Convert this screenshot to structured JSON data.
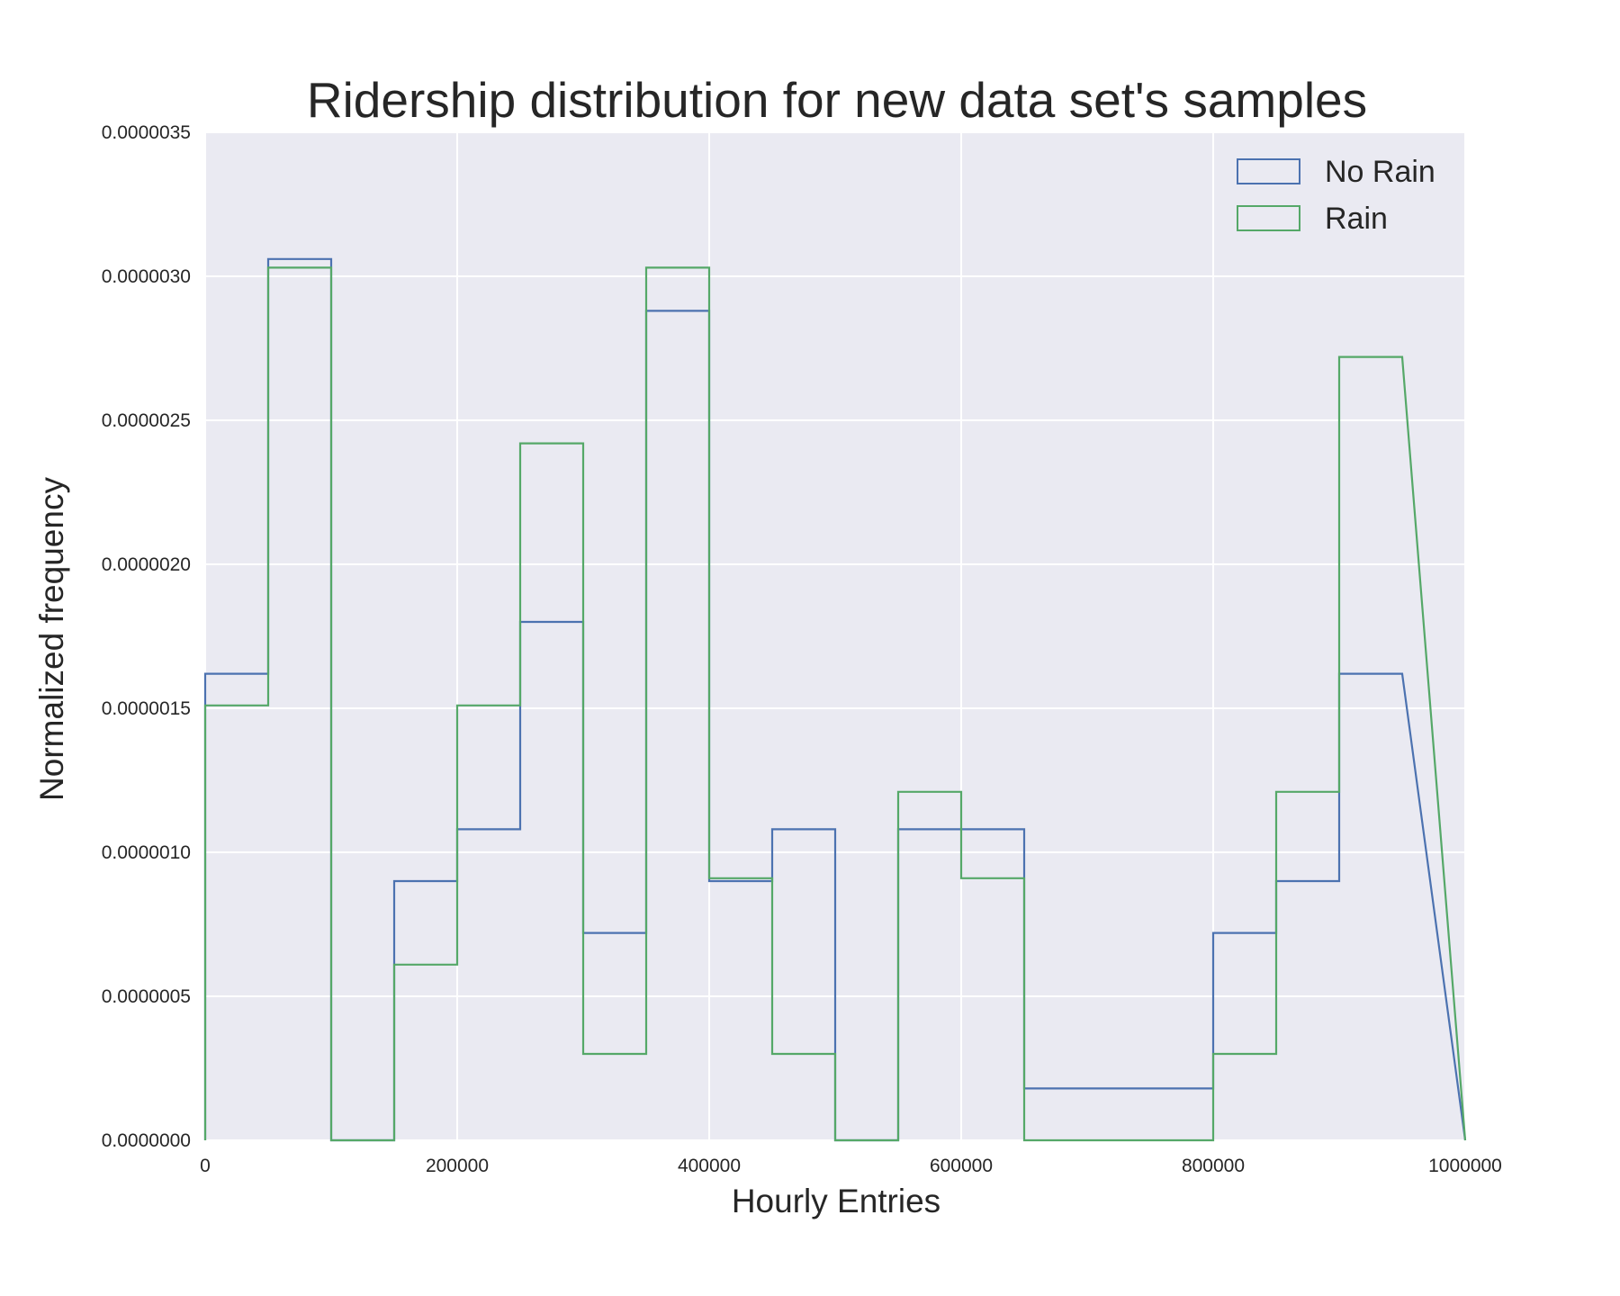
{
  "chart_data": {
    "type": "histogram-step",
    "title": "Ridership distribution for new data set's samples",
    "xlabel": "Hourly Entries",
    "ylabel": "Normalized frequency",
    "xlim": [
      0,
      1000000
    ],
    "ylim": [
      0,
      3.5e-06
    ],
    "x_ticks": [
      0,
      200000,
      400000,
      600000,
      800000,
      1000000
    ],
    "x_tick_labels": [
      "0",
      "200000",
      "400000",
      "600000",
      "800000",
      "1000000"
    ],
    "y_ticks": [
      0,
      5e-07,
      1e-06,
      1.5e-06,
      2e-06,
      2.5e-06,
      3e-06,
      3.5e-06
    ],
    "y_tick_labels": [
      "0.0000000",
      "0.0000005",
      "0.0000010",
      "0.0000015",
      "0.0000020",
      "0.0000025",
      "0.0000030",
      "0.0000035"
    ],
    "grid": true,
    "legend_position": "top-right",
    "bin_edges": [
      0,
      50000,
      100000,
      150000,
      200000,
      250000,
      300000,
      350000,
      400000,
      450000,
      500000,
      550000,
      600000,
      650000,
      700000,
      750000,
      800000,
      850000,
      900000,
      950000
    ],
    "series": [
      {
        "name": "No Rain",
        "color": "#4c72b0",
        "values": [
          1.62e-06,
          3.06e-06,
          0,
          9e-07,
          1.08e-06,
          1.8e-06,
          7.2e-07,
          2.88e-06,
          9e-07,
          1.08e-06,
          0,
          1.08e-06,
          1.08e-06,
          1.8e-07,
          1.8e-07,
          1.8e-07,
          7.2e-07,
          9e-07,
          1.62e-06
        ]
      },
      {
        "name": "Rain",
        "color": "#55a868",
        "values": [
          1.51e-06,
          3.03e-06,
          0,
          6.1e-07,
          1.51e-06,
          2.42e-06,
          3e-07,
          3.03e-06,
          9.1e-07,
          3e-07,
          0,
          1.21e-06,
          9.1e-07,
          0,
          0,
          0,
          3e-07,
          1.21e-06,
          2.72e-06
        ]
      }
    ]
  }
}
